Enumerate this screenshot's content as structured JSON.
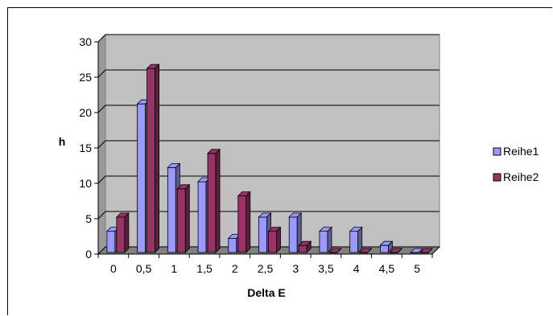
{
  "chart_data": {
    "type": "bar",
    "style": "3d-clustered-column",
    "categories": [
      "0",
      "0,5",
      "1",
      "1,5",
      "2",
      "2,5",
      "3",
      "3,5",
      "4",
      "4,5",
      "5"
    ],
    "series": [
      {
        "name": "Reihe1",
        "values": [
          3,
          21,
          12,
          10,
          2,
          5,
          5,
          3,
          3,
          1,
          0
        ],
        "color": "#9999ff"
      },
      {
        "name": "Reihe2",
        "values": [
          5,
          26,
          9,
          14,
          8,
          3,
          1,
          0,
          0,
          0,
          0
        ],
        "color": "#993366"
      }
    ],
    "title": "",
    "xlabel": "Delta E",
    "ylabel": "h",
    "ylim": [
      0,
      30
    ],
    "yticks": [
      "0",
      "5",
      "10",
      "15",
      "20",
      "25",
      "30"
    ],
    "grid": true,
    "legend": "right",
    "colors": {
      "wall": "#c0c0c0",
      "floor": "#808080",
      "grid": "#000000"
    }
  }
}
